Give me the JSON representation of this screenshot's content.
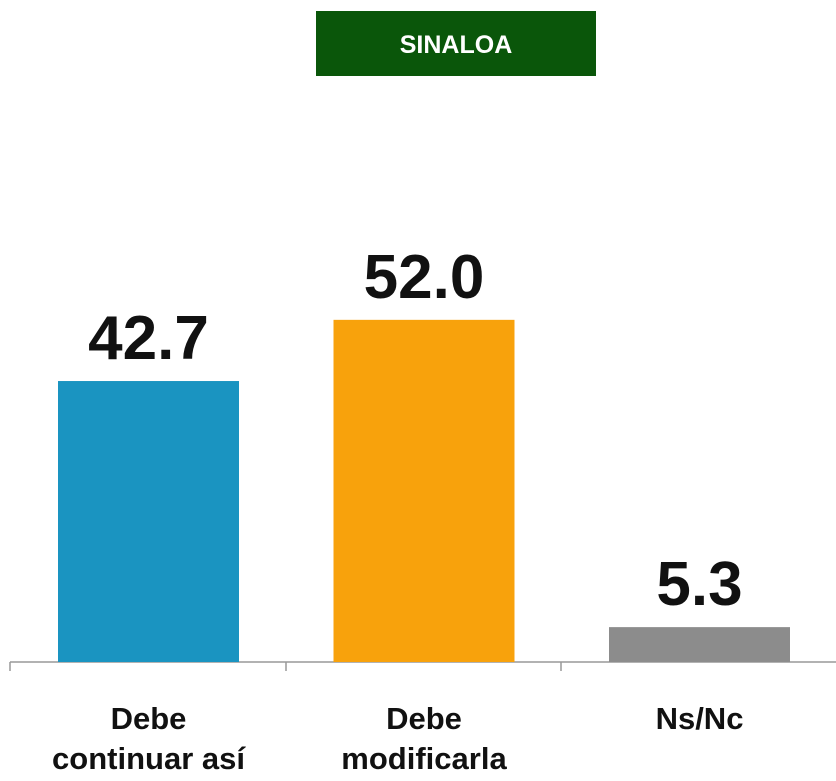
{
  "chart_data": {
    "type": "bar",
    "title": "SINALOA",
    "categories": [
      [
        "Debe",
        "continuar así"
      ],
      [
        "Debe",
        "modificarla"
      ],
      [
        "Ns/Nc"
      ]
    ],
    "values": [
      42.7,
      52.0,
      5.3
    ],
    "value_labels": [
      "42.7",
      "52.0",
      "5.3"
    ],
    "colors": [
      "#1a94c1",
      "#f8a20c",
      "#8c8c8c"
    ],
    "title_color": "#0a560a"
  }
}
